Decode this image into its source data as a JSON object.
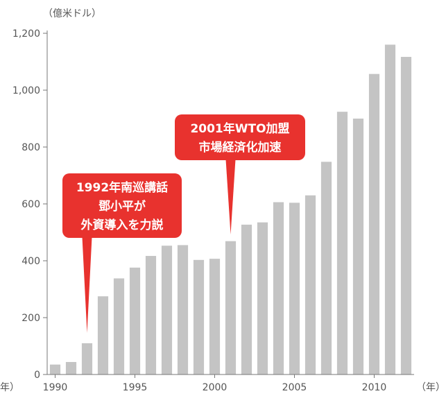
{
  "chart_data": {
    "type": "bar",
    "y_unit": "（億米ドル）",
    "x_unit": "（年）",
    "x_unit_left": "年）",
    "x": [
      1990,
      1991,
      1992,
      1993,
      1994,
      1995,
      1996,
      1997,
      1998,
      1999,
      2000,
      2001,
      2002,
      2003,
      2004,
      2005,
      2006,
      2007,
      2008,
      2009,
      2010,
      2011,
      2012
    ],
    "values": [
      35,
      44,
      110,
      275,
      338,
      376,
      417,
      453,
      455,
      403,
      407,
      469,
      527,
      535,
      606,
      604,
      630,
      748,
      924,
      900,
      1057,
      1160,
      1117
    ],
    "x_tick_labels": [
      "1990",
      "1995",
      "2000",
      "2005",
      "2010"
    ],
    "x_ticks": [
      1990,
      1995,
      2000,
      2005,
      2010
    ],
    "y_ticks": [
      0,
      200,
      400,
      600,
      800,
      1000,
      1200
    ],
    "y_tick_labels": [
      "0",
      "200",
      "400",
      "600",
      "800",
      "1,000",
      "1,200"
    ],
    "ylim": [
      0,
      1200
    ],
    "bar_color": "#c4c4c4",
    "annotations": [
      {
        "year": 1992,
        "lines": [
          "1992年南巡講話",
          "鄧小平が",
          "外資導入を力説"
        ],
        "color": "#e8322e"
      },
      {
        "year": 2001,
        "lines": [
          "2001年WTO加盟",
          "市場経済化加速"
        ],
        "color": "#e8322e"
      }
    ]
  }
}
